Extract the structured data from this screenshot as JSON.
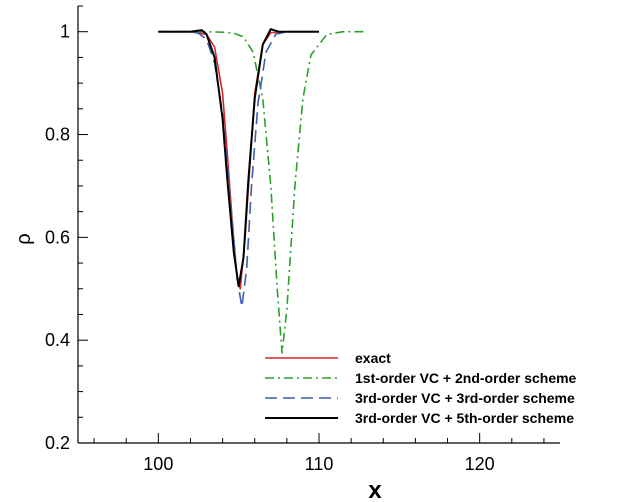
{
  "chart_data": {
    "type": "line",
    "xlabel": "x",
    "ylabel": "ρ",
    "xlim": [
      95,
      125
    ],
    "ylim": [
      0.2,
      1.05
    ],
    "xticks": [
      100,
      110,
      120
    ],
    "xtick_labels": [
      "100",
      "110",
      "120"
    ],
    "yticks": [
      0.2,
      0.4,
      0.6,
      0.8,
      1.0
    ],
    "ytick_labels": [
      "0.2",
      "0.4",
      "0.6",
      "0.8",
      "1"
    ],
    "grid": false,
    "legend_position": "bottom-right",
    "series": [
      {
        "name": "exact",
        "color": "#d62728",
        "dash": "solid",
        "x": [
          100,
          102,
          103,
          103.5,
          104,
          104.3,
          104.6,
          104.9,
          105.1,
          105.4,
          105.7,
          106,
          106.5,
          107,
          108,
          110
        ],
        "y": [
          1.0,
          1.0,
          0.995,
          0.97,
          0.88,
          0.76,
          0.63,
          0.52,
          0.5,
          0.6,
          0.74,
          0.88,
          0.975,
          0.998,
          1.0,
          1.0
        ]
      },
      {
        "name": "1st-order VC + 2nd-order scheme",
        "color": "#2ca02c",
        "dash": "dashdot",
        "x": [
          100,
          103,
          104,
          104.7,
          105.3,
          105.9,
          106.5,
          107.0,
          107.4,
          107.7,
          108.0,
          108.5,
          109,
          109.5,
          110.5,
          111.5,
          112.8
        ],
        "y": [
          1.0,
          1.0,
          0.999,
          0.997,
          0.99,
          0.96,
          0.87,
          0.7,
          0.5,
          0.375,
          0.46,
          0.7,
          0.87,
          0.955,
          0.995,
          1.0,
          1.0
        ]
      },
      {
        "name": "3rd-order VC + 3rd-order scheme",
        "color": "#3a5fb0",
        "dash": "dashed",
        "x": [
          100,
          102,
          102.5,
          103,
          103.5,
          104,
          104.5,
          104.9,
          105.2,
          105.5,
          105.8,
          106.2,
          106.7,
          107.3,
          108,
          110
        ],
        "y": [
          1.0,
          1.0,
          0.997,
          0.985,
          0.94,
          0.84,
          0.67,
          0.52,
          0.465,
          0.54,
          0.7,
          0.86,
          0.96,
          0.995,
          1.0,
          1.0
        ]
      },
      {
        "name": "3rd-order VC + 5th-order scheme",
        "color": "#000000",
        "dash": "solid",
        "x": [
          100,
          102,
          102.7,
          103,
          103.5,
          104,
          104.3,
          104.7,
          105.0,
          105.3,
          105.6,
          106,
          106.5,
          107,
          107.5,
          108,
          110
        ],
        "y": [
          1.0,
          1.0,
          1.003,
          0.995,
          0.95,
          0.83,
          0.71,
          0.57,
          0.505,
          0.56,
          0.71,
          0.87,
          0.975,
          1.005,
          1.0,
          1.0,
          1.0
        ]
      }
    ]
  }
}
